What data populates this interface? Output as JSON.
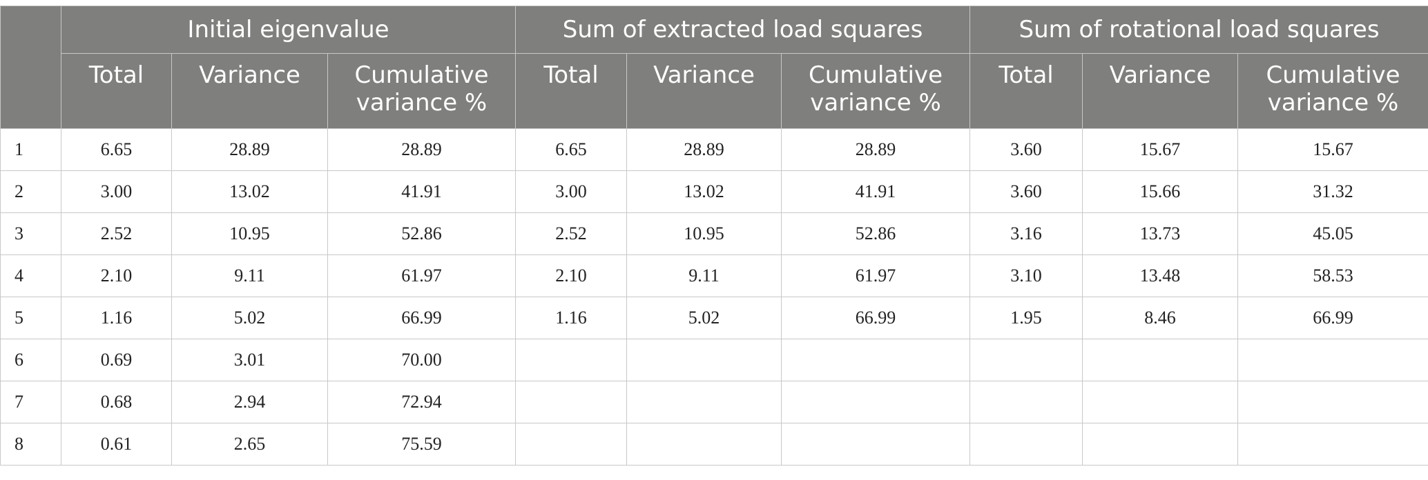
{
  "table": {
    "group_headers": [
      "Initial eigenvalue",
      "Sum of extracted load squares",
      "Sum of rotational load squares"
    ],
    "sub_headers": [
      "Total",
      "Variance",
      "Cumulative variance %"
    ],
    "rows": [
      [
        "1",
        "6.65",
        "28.89",
        "28.89",
        "6.65",
        "28.89",
        "28.89",
        "3.60",
        "15.67",
        "15.67"
      ],
      [
        "2",
        "3.00",
        "13.02",
        "41.91",
        "3.00",
        "13.02",
        "41.91",
        "3.60",
        "15.66",
        "31.32"
      ],
      [
        "3",
        "2.52",
        "10.95",
        "52.86",
        "2.52",
        "10.95",
        "52.86",
        "3.16",
        "13.73",
        "45.05"
      ],
      [
        "4",
        "2.10",
        "9.11",
        "61.97",
        "2.10",
        "9.11",
        "61.97",
        "3.10",
        "13.48",
        "58.53"
      ],
      [
        "5",
        "1.16",
        "5.02",
        "66.99",
        "1.16",
        "5.02",
        "66.99",
        "1.95",
        "8.46",
        "66.99"
      ],
      [
        "6",
        "0.69",
        "3.01",
        "70.00",
        "",
        "",
        "",
        "",
        "",
        ""
      ],
      [
        "7",
        "0.68",
        "2.94",
        "72.94",
        "",
        "",
        "",
        "",
        "",
        ""
      ],
      [
        "8",
        "0.61",
        "2.65",
        "75.59",
        "",
        "",
        "",
        "",
        "",
        ""
      ]
    ]
  }
}
